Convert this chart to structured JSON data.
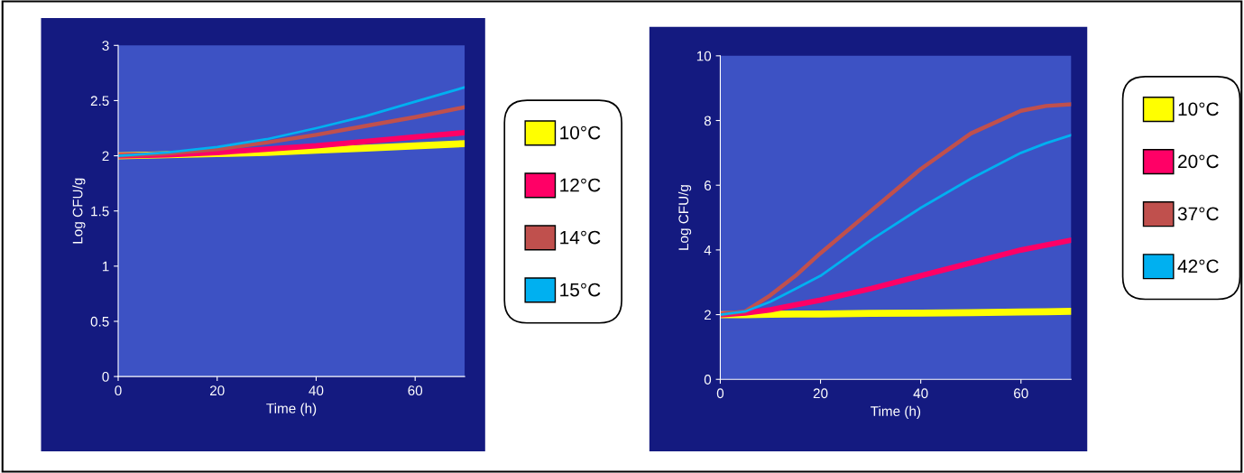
{
  "chart_data": [
    {
      "type": "line",
      "xlabel": "Time (h)",
      "ylabel": "Log CFU/g",
      "xlim": [
        0,
        70
      ],
      "xticks": [
        0,
        20,
        40,
        60
      ],
      "ylim": [
        0,
        3
      ],
      "yticks": [
        0,
        0.5,
        1,
        1.5,
        2,
        2.5,
        3
      ],
      "grid": false,
      "legend": "right",
      "marker": "none",
      "line_style": "solid",
      "x": [
        0,
        10,
        20,
        30,
        40,
        50,
        60,
        70
      ],
      "series": [
        {
          "name": "10°C",
          "color": "#ffff00",
          "values": [
            2.0,
            2.01,
            2.02,
            2.03,
            2.05,
            2.07,
            2.09,
            2.11
          ]
        },
        {
          "name": "12°C",
          "color": "#ff0066",
          "values": [
            2.0,
            2.01,
            2.03,
            2.06,
            2.09,
            2.13,
            2.17,
            2.21
          ]
        },
        {
          "name": "14°C",
          "color": "#c0504d",
          "values": [
            2.0,
            2.02,
            2.06,
            2.12,
            2.19,
            2.27,
            2.35,
            2.44
          ]
        },
        {
          "name": "15°C",
          "color": "#00b0f0",
          "values": [
            2.0,
            2.03,
            2.08,
            2.15,
            2.25,
            2.36,
            2.49,
            2.62
          ]
        }
      ]
    },
    {
      "type": "line",
      "xlabel": "Time (h)",
      "ylabel": "Log CFU/g",
      "xlim": [
        0,
        70
      ],
      "xticks": [
        0,
        20,
        40,
        60
      ],
      "ylim": [
        0,
        10
      ],
      "yticks": [
        0,
        2,
        4,
        6,
        8,
        10
      ],
      "grid": false,
      "legend": "right",
      "marker": "none",
      "line_style": "solid",
      "x": [
        0,
        5,
        10,
        15,
        20,
        30,
        40,
        50,
        60,
        65,
        70
      ],
      "series": [
        {
          "name": "10°C",
          "color": "#ffff00",
          "values": [
            2.0,
            2.0,
            2.01,
            2.02,
            2.02,
            2.04,
            2.05,
            2.06,
            2.08,
            2.09,
            2.1
          ]
        },
        {
          "name": "20°C",
          "color": "#ff0066",
          "values": [
            2.0,
            2.05,
            2.15,
            2.3,
            2.45,
            2.8,
            3.2,
            3.6,
            4.0,
            4.15,
            4.3
          ]
        },
        {
          "name": "37°C",
          "color": "#c0504d",
          "values": [
            2.0,
            2.1,
            2.6,
            3.2,
            3.9,
            5.2,
            6.5,
            7.6,
            8.3,
            8.45,
            8.5
          ]
        },
        {
          "name": "42°C",
          "color": "#00b0f0",
          "values": [
            2.0,
            2.1,
            2.4,
            2.8,
            3.2,
            4.3,
            5.3,
            6.2,
            7.0,
            7.3,
            7.55
          ]
        }
      ]
    }
  ]
}
